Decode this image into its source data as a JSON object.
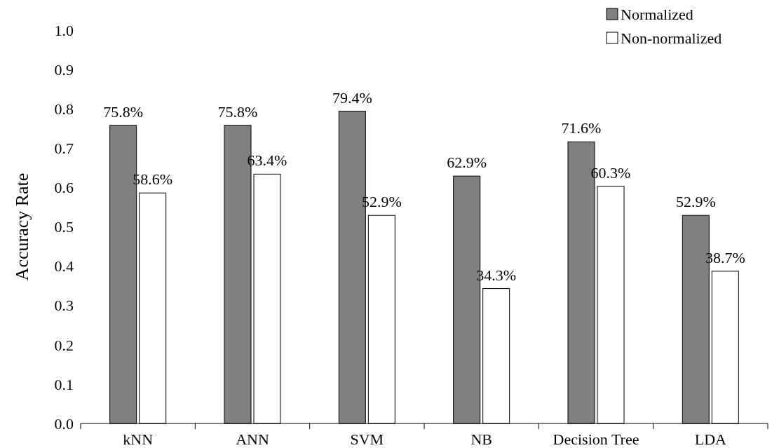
{
  "chart_data": {
    "type": "bar",
    "ylabel": "Accuracy Rate",
    "categories": [
      "kNN",
      "ANN",
      "SVM",
      "NB",
      "Decision Tree",
      "LDA"
    ],
    "series": [
      {
        "name": "Normalized",
        "color": "#808080",
        "values": [
          0.758,
          0.758,
          0.794,
          0.629,
          0.716,
          0.529
        ],
        "value_labels": [
          "75.8%",
          "75.8%",
          "79.4%",
          "62.9%",
          "71.6%",
          "52.9%"
        ]
      },
      {
        "name": "Non-normalized",
        "color": "#ffffff",
        "values": [
          0.586,
          0.634,
          0.529,
          0.343,
          0.603,
          0.387
        ],
        "value_labels": [
          "58.6%",
          "63.4%",
          "52.9%",
          "34.3%",
          "60.3%",
          "38.7%"
        ]
      }
    ],
    "ylim": [
      0,
      1
    ],
    "yticks": [
      {
        "value": 0,
        "label": "0.0"
      },
      0.1,
      0.2,
      0.3,
      0.4,
      0.5,
      0.6,
      0.7,
      0.8,
      0.9,
      {
        "value": 1,
        "label": "1.0"
      }
    ],
    "grid": false,
    "legend": "top right"
  }
}
